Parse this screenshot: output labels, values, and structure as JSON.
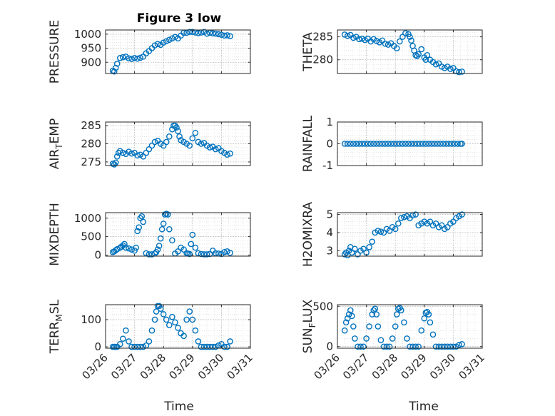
{
  "figure": {
    "title": "Figure 3 low",
    "xlabel": "Time"
  },
  "colors": {
    "marker": "#0072BD",
    "axis": "#262626",
    "grid": "#b0b0b0"
  },
  "chart_data": [
    {
      "type": "scatter",
      "ylabel": "PRESSURE",
      "xlim": [
        0,
        5
      ],
      "ylim": [
        860,
        1015
      ],
      "yticks": [
        900,
        950,
        1000
      ],
      "grid": true,
      "show_xticklabels": false,
      "x": [
        0.25,
        0.3,
        0.35,
        0.4,
        0.5,
        0.6,
        0.7,
        0.8,
        0.9,
        1.0,
        1.1,
        1.2,
        1.3,
        1.4,
        1.5,
        1.6,
        1.7,
        1.8,
        1.9,
        2.0,
        2.1,
        2.2,
        2.3,
        2.4,
        2.5,
        2.6,
        2.7,
        2.8,
        2.9,
        3.0,
        3.1,
        3.2,
        3.3,
        3.4,
        3.5,
        3.6,
        3.7,
        3.8,
        3.9,
        4.0,
        4.1,
        4.2,
        4.3
      ],
      "y": [
        870,
        867,
        880,
        895,
        915,
        918,
        920,
        914,
        912,
        915,
        913,
        916,
        920,
        932,
        940,
        950,
        960,
        965,
        962,
        970,
        975,
        980,
        985,
        990,
        985,
        995,
        1005,
        1005,
        1008,
        1008,
        1006,
        1004,
        1006,
        1008,
        1002,
        1005,
        1003,
        1002,
        1000,
        998,
        995,
        996,
        993
      ]
    },
    {
      "type": "scatter",
      "ylabel": "THETA",
      "xlim": [
        0,
        5
      ],
      "ylim": [
        277,
        286.5
      ],
      "yticks": [
        280,
        285
      ],
      "grid": true,
      "show_xticklabels": false,
      "x": [
        0.25,
        0.35,
        0.45,
        0.55,
        0.65,
        0.75,
        0.85,
        0.95,
        1.05,
        1.15,
        1.25,
        1.35,
        1.45,
        1.55,
        1.65,
        1.75,
        1.85,
        1.95,
        2.05,
        2.15,
        2.25,
        2.35,
        2.45,
        2.5,
        2.55,
        2.6,
        2.65,
        2.7,
        2.75,
        2.8,
        2.9,
        3.0,
        3.05,
        3.1,
        3.2,
        3.3,
        3.4,
        3.5,
        3.6,
        3.7,
        3.8,
        3.9,
        4.0,
        4.1,
        4.2,
        4.3
      ],
      "y": [
        285.5,
        285.2,
        285.4,
        284.8,
        285.0,
        284.5,
        284.6,
        284.3,
        284.6,
        284.0,
        284.5,
        284.1,
        283.8,
        284.2,
        283.5,
        283.3,
        283.6,
        283.0,
        282.5,
        284.0,
        285.0,
        285.8,
        285.6,
        285.0,
        284.2,
        283.0,
        282.0,
        281.0,
        280.8,
        281.2,
        282.3,
        280.5,
        280.0,
        281.0,
        280.0,
        279.5,
        279.0,
        279.2,
        278.5,
        278.2,
        278.5,
        278.0,
        278.2,
        277.5,
        277.3,
        277.4
      ]
    },
    {
      "type": "scatter",
      "ylabel": "AIR_TEMP",
      "xlim": [
        0,
        5
      ],
      "ylim": [
        274,
        286
      ],
      "yticks": [
        275,
        280,
        285
      ],
      "grid": true,
      "show_xticklabels": false,
      "x": [
        0.25,
        0.3,
        0.35,
        0.4,
        0.45,
        0.5,
        0.6,
        0.7,
        0.8,
        0.9,
        1.0,
        1.1,
        1.2,
        1.3,
        1.4,
        1.5,
        1.6,
        1.7,
        1.8,
        1.9,
        2.0,
        2.1,
        2.2,
        2.3,
        2.35,
        2.4,
        2.45,
        2.5,
        2.55,
        2.6,
        2.7,
        2.8,
        2.9,
        3.0,
        3.1,
        3.2,
        3.3,
        3.4,
        3.5,
        3.6,
        3.7,
        3.8,
        3.9,
        4.0,
        4.1,
        4.2,
        4.3
      ],
      "y": [
        274.5,
        274.3,
        274.8,
        276.5,
        277.5,
        278.0,
        277.5,
        277.2,
        277.8,
        277.3,
        277.5,
        276.8,
        277.0,
        276.5,
        277.5,
        278.5,
        279.5,
        280.5,
        280.8,
        280.0,
        279.5,
        280.5,
        282.0,
        284.0,
        285.0,
        285.0,
        284.5,
        283.5,
        282.0,
        281.0,
        280.5,
        280.0,
        279.5,
        281.5,
        283.0,
        280.5,
        280.0,
        280.2,
        279.5,
        279.0,
        279.2,
        278.5,
        278.8,
        278.0,
        277.5,
        277.0,
        277.3
      ]
    },
    {
      "type": "scatter",
      "ylabel": "RAINFALL",
      "xlim": [
        0,
        5
      ],
      "ylim": [
        -1,
        1
      ],
      "yticks": [
        -1,
        0,
        1
      ],
      "grid": true,
      "show_xticklabels": false,
      "x": [
        0.25,
        0.35,
        0.45,
        0.55,
        0.65,
        0.75,
        0.85,
        0.95,
        1.05,
        1.15,
        1.25,
        1.35,
        1.45,
        1.55,
        1.65,
        1.75,
        1.85,
        1.95,
        2.05,
        2.15,
        2.25,
        2.35,
        2.45,
        2.55,
        2.65,
        2.75,
        2.85,
        2.95,
        3.05,
        3.15,
        3.25,
        3.35,
        3.45,
        3.55,
        3.65,
        3.75,
        3.85,
        3.95,
        4.05,
        4.15,
        4.25,
        4.3
      ],
      "y": [
        0,
        0,
        0,
        0,
        0,
        0,
        0,
        0,
        0,
        0,
        0,
        0,
        0,
        0,
        0,
        0,
        0,
        0,
        0,
        0,
        0,
        0,
        0,
        0,
        0,
        0,
        0,
        0,
        0,
        0,
        0,
        0,
        0,
        0,
        0,
        0,
        0,
        0,
        0,
        0,
        0,
        0
      ]
    },
    {
      "type": "scatter",
      "ylabel": "MIXDEPTH",
      "xlim": [
        0,
        5
      ],
      "ylim": [
        -30,
        1150
      ],
      "yticks": [
        0,
        500,
        1000
      ],
      "grid": true,
      "show_xticklabels": false,
      "x": [
        0.25,
        0.3,
        0.35,
        0.4,
        0.5,
        0.55,
        0.6,
        0.65,
        0.7,
        0.8,
        0.9,
        1.0,
        1.05,
        1.1,
        1.15,
        1.2,
        1.25,
        1.3,
        1.4,
        1.5,
        1.6,
        1.7,
        1.75,
        1.8,
        1.85,
        1.9,
        1.95,
        2.0,
        2.05,
        2.1,
        2.15,
        2.2,
        2.3,
        2.4,
        2.5,
        2.6,
        2.7,
        2.8,
        2.85,
        2.9,
        2.95,
        3.0,
        3.1,
        3.2,
        3.3,
        3.4,
        3.5,
        3.6,
        3.7,
        3.8,
        3.9,
        4.0,
        4.1,
        4.2,
        4.3
      ],
      "y": [
        80,
        100,
        130,
        160,
        200,
        230,
        260,
        300,
        200,
        180,
        150,
        120,
        200,
        650,
        750,
        1000,
        1050,
        900,
        50,
        20,
        20,
        40,
        80,
        150,
        250,
        450,
        700,
        850,
        1100,
        1120,
        1100,
        700,
        400,
        40,
        100,
        200,
        150,
        50,
        40,
        30,
        300,
        550,
        200,
        50,
        30,
        20,
        20,
        30,
        120,
        50,
        40,
        30,
        80,
        100,
        60
      ]
    },
    {
      "type": "scatter",
      "ylabel": "H2OMIXRA",
      "xlim": [
        0,
        5
      ],
      "ylim": [
        2.7,
        5.1
      ],
      "yticks": [
        3,
        4,
        5
      ],
      "grid": true,
      "show_xticklabels": false,
      "x": [
        0.25,
        0.3,
        0.35,
        0.4,
        0.45,
        0.5,
        0.6,
        0.7,
        0.8,
        0.9,
        1.0,
        1.1,
        1.2,
        1.3,
        1.4,
        1.5,
        1.6,
        1.7,
        1.8,
        1.9,
        2.0,
        2.1,
        2.2,
        2.3,
        2.4,
        2.5,
        2.6,
        2.7,
        2.8,
        2.9,
        3.0,
        3.1,
        3.2,
        3.3,
        3.4,
        3.5,
        3.6,
        3.7,
        3.8,
        3.9,
        4.0,
        4.1,
        4.2,
        4.3
      ],
      "y": [
        2.8,
        2.9,
        2.75,
        3.0,
        3.2,
        2.9,
        3.1,
        2.8,
        3.0,
        3.1,
        2.9,
        3.2,
        3.5,
        4.0,
        4.1,
        4.05,
        4.0,
        4.2,
        4.1,
        4.3,
        4.2,
        4.5,
        4.8,
        4.85,
        4.9,
        4.8,
        4.95,
        5.0,
        4.4,
        4.5,
        4.6,
        4.5,
        4.6,
        4.4,
        4.5,
        4.3,
        4.4,
        4.2,
        4.3,
        4.5,
        4.6,
        4.8,
        4.9,
        5.0
      ]
    },
    {
      "type": "scatter",
      "ylabel": "TERR_MSL",
      "xlim": [
        0,
        5
      ],
      "ylim": [
        -5,
        155
      ],
      "yticks": [
        0,
        100
      ],
      "grid": true,
      "show_xticklabels": true,
      "xticks": [
        0,
        1,
        2,
        3,
        4,
        5
      ],
      "xticklabels": [
        "03/26",
        "03/27",
        "03/28",
        "03/29",
        "03/30",
        "03/31"
      ],
      "x": [
        0.25,
        0.3,
        0.35,
        0.4,
        0.5,
        0.6,
        0.7,
        0.8,
        0.9,
        1.0,
        1.1,
        1.2,
        1.3,
        1.4,
        1.5,
        1.6,
        1.7,
        1.75,
        1.8,
        1.85,
        1.9,
        2.0,
        2.1,
        2.2,
        2.3,
        2.4,
        2.5,
        2.6,
        2.7,
        2.8,
        2.9,
        3.0,
        3.1,
        3.2,
        3.3,
        3.4,
        3.5,
        3.6,
        3.7,
        3.8,
        3.9,
        4.0,
        4.1,
        4.2,
        4.3
      ],
      "y": [
        0,
        0,
        0,
        0,
        10,
        30,
        60,
        20,
        0,
        0,
        0,
        0,
        0,
        5,
        20,
        60,
        100,
        130,
        150,
        150,
        140,
        120,
        100,
        80,
        110,
        90,
        70,
        50,
        40,
        100,
        130,
        100,
        60,
        20,
        0,
        0,
        0,
        0,
        0,
        0,
        5,
        10,
        0,
        0,
        20
      ]
    },
    {
      "type": "scatter",
      "ylabel": "SUN_FLUX",
      "xlim": [
        0,
        5
      ],
      "ylim": [
        -20,
        520
      ],
      "yticks": [
        0,
        500
      ],
      "grid": true,
      "show_xticklabels": true,
      "xticks": [
        0,
        1,
        2,
        3,
        4,
        5
      ],
      "xticklabels": [
        "03/26",
        "03/27",
        "03/28",
        "03/29",
        "03/30",
        "03/31"
      ],
      "x": [
        0.25,
        0.3,
        0.35,
        0.4,
        0.45,
        0.5,
        0.55,
        0.6,
        0.7,
        0.8,
        0.9,
        1.0,
        1.1,
        1.2,
        1.25,
        1.3,
        1.35,
        1.4,
        1.5,
        1.6,
        1.7,
        1.8,
        1.9,
        2.0,
        2.05,
        2.1,
        2.15,
        2.2,
        2.3,
        2.4,
        2.5,
        2.6,
        2.7,
        2.8,
        2.9,
        3.0,
        3.05,
        3.1,
        3.15,
        3.2,
        3.3,
        3.4,
        3.5,
        3.6,
        3.7,
        3.8,
        3.9,
        4.0,
        4.1,
        4.2,
        4.3
      ],
      "y": [
        200,
        300,
        350,
        400,
        450,
        380,
        250,
        100,
        0,
        0,
        0,
        100,
        250,
        400,
        450,
        470,
        400,
        250,
        80,
        0,
        0,
        0,
        100,
        250,
        400,
        470,
        480,
        450,
        300,
        100,
        0,
        0,
        0,
        0,
        200,
        350,
        420,
        430,
        400,
        300,
        150,
        0,
        0,
        0,
        0,
        0,
        0,
        0,
        0,
        20,
        30
      ]
    }
  ]
}
